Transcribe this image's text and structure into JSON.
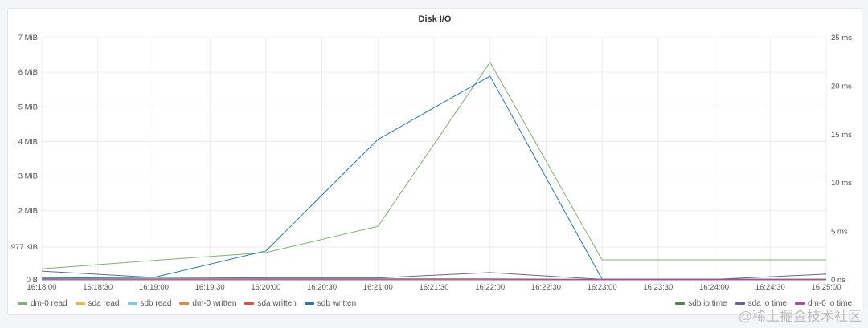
{
  "chart_data": {
    "type": "line",
    "title": "Disk I/O",
    "x": [
      "16:18:00",
      "16:18:30",
      "16:19:00",
      "16:19:30",
      "16:20:00",
      "16:20:30",
      "16:21:00",
      "16:21:30",
      "16:22:00",
      "16:22:30",
      "16:23:00",
      "16:23:30",
      "16:24:00",
      "16:24:30",
      "16:25:00"
    ],
    "y_left": {
      "ticks": [
        "0 B",
        "977 KiB",
        "2 MiB",
        "3 MiB",
        "4 MiB",
        "5 MiB",
        "6 MiB",
        "7 MiB"
      ],
      "range_mib": [
        0,
        7
      ]
    },
    "y_right": {
      "ticks": [
        "0 ns",
        "5 ms",
        "10 ms",
        "15 ms",
        "20 ms",
        "25 ms"
      ],
      "range_ms": [
        0,
        25
      ]
    },
    "grid": true,
    "legend_placement": "bottom",
    "series": [
      {
        "name": "dm-0 read",
        "axis": "left",
        "color": "#7eb26d",
        "times": [
          "16:18:00",
          "16:19:00",
          "16:20:00",
          "16:21:00",
          "16:22:00",
          "16:23:00",
          "16:24:00",
          "16:25:00"
        ],
        "values_mib": [
          0.32,
          0.56,
          0.79,
          1.55,
          6.29,
          0.58,
          0.58,
          0.58
        ]
      },
      {
        "name": "sda read",
        "axis": "left",
        "color": "#eab839",
        "times": [
          "16:18:00",
          "16:25:00"
        ],
        "values_mib": [
          0,
          0
        ]
      },
      {
        "name": "sdb read",
        "axis": "left",
        "color": "#6ed0e0",
        "times": [
          "16:18:00",
          "16:25:00"
        ],
        "values_mib": [
          0,
          0
        ]
      },
      {
        "name": "dm-0 written",
        "axis": "left",
        "color": "#ef843c",
        "times": [
          "16:18:00",
          "16:25:00"
        ],
        "values_mib": [
          0,
          0
        ]
      },
      {
        "name": "sda written",
        "axis": "left",
        "color": "#e24d42",
        "times": [
          "16:18:00",
          "16:25:00"
        ],
        "values_mib": [
          0,
          0
        ]
      },
      {
        "name": "sdb written",
        "axis": "left",
        "color": "#1f78c1",
        "times": [
          "16:18:00",
          "16:19:00",
          "16:20:00",
          "16:21:00",
          "16:22:00",
          "16:23:00",
          "16:24:00",
          "16:25:00"
        ],
        "values_mib": [
          0.05,
          0.07,
          0.84,
          4.06,
          5.89,
          0.02,
          0.02,
          0.02
        ]
      },
      {
        "name": "sdb io time",
        "axis": "right",
        "color": "#508642",
        "times": [
          "16:18:00",
          "16:19:00",
          "16:20:00",
          "16:21:00",
          "16:22:00",
          "16:23:00",
          "16:24:00",
          "16:25:00"
        ],
        "values_ms": [
          0.1,
          0.1,
          0.1,
          0.1,
          0.1,
          0.05,
          0.05,
          0.05
        ]
      },
      {
        "name": "sda io time",
        "axis": "right",
        "color": "#705da0",
        "times": [
          "16:18:00",
          "16:19:00",
          "16:20:00",
          "16:21:00",
          "16:22:00",
          "16:23:00",
          "16:24:00",
          "16:25:00"
        ],
        "values_ms": [
          0.9,
          0.25,
          0.2,
          0.2,
          0.75,
          0.05,
          0.05,
          0.6
        ]
      },
      {
        "name": "dm-0 io time",
        "axis": "right",
        "color": "#ba43a9",
        "times": [
          "16:18:00",
          "16:25:00"
        ],
        "values_ms": [
          0.02,
          0.02
        ]
      }
    ]
  },
  "watermark": "@稀土掘金技术社区"
}
